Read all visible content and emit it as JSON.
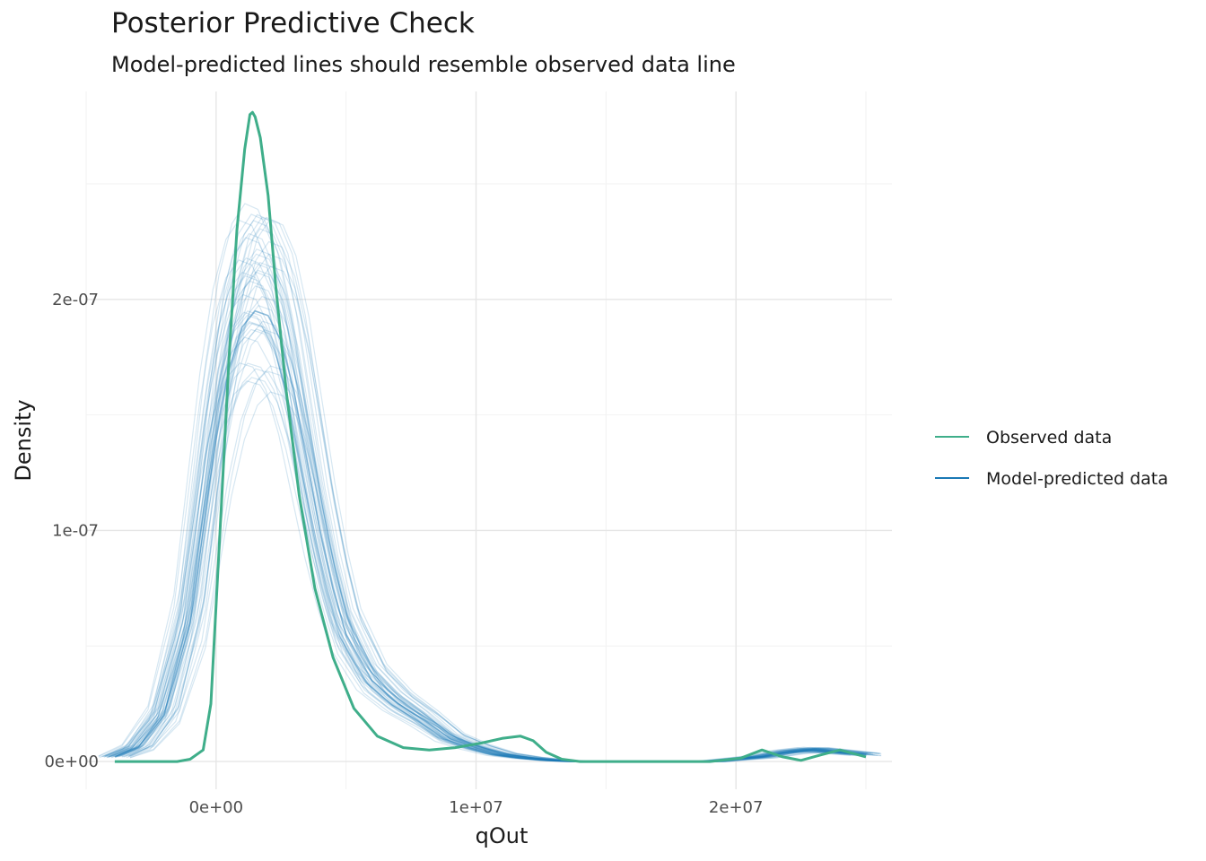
{
  "chart_data": {
    "type": "line",
    "title": "Posterior Predictive Check",
    "subtitle": "Model-predicted lines should resemble observed data line",
    "xlabel": "qOut",
    "ylabel": "Density",
    "xlim": [
      -5000000,
      26000000
    ],
    "ylim": [
      -1.2e-08,
      2.9e-07
    ],
    "x_ticks": [
      {
        "value": 0,
        "label": "0e+00"
      },
      {
        "value": 10000000,
        "label": "1e+07"
      },
      {
        "value": 20000000,
        "label": "2e+07"
      }
    ],
    "y_ticks": [
      {
        "value": 0,
        "label": "0e+00"
      },
      {
        "value": 1e-07,
        "label": "1e-07"
      },
      {
        "value": 2e-07,
        "label": "2e-07"
      }
    ],
    "x_minor_grid": [
      -5000000,
      5000000,
      15000000,
      25000000
    ],
    "y_minor_grid": [
      5e-08,
      1.5e-07,
      2.5e-07
    ],
    "grid": true,
    "legend_position": "right",
    "series": [
      {
        "name": "Observed data",
        "color": "#3fae8a",
        "x": [
          -3900000,
          -1500000,
          -1000000,
          -500000,
          -200000,
          200000,
          500000,
          800000,
          1100000,
          1300000,
          1400000,
          1500000,
          1700000,
          2000000,
          2300000,
          2700000,
          3200000,
          3800000,
          4500000,
          5300000,
          6200000,
          7200000,
          8200000,
          9200000,
          10200000,
          11000000,
          11700000,
          12200000,
          12700000,
          13300000,
          14000000,
          15000000,
          17000000,
          19000000,
          20200000,
          21000000,
          21800000,
          22500000,
          23300000,
          24000000,
          25000000
        ],
        "y": [
          0,
          0,
          1e-09,
          5e-09,
          2.5e-08,
          1.1e-07,
          1.75e-07,
          2.3e-07,
          2.65e-07,
          2.8e-07,
          2.81e-07,
          2.79e-07,
          2.7e-07,
          2.45e-07,
          2.05e-07,
          1.6e-07,
          1.15e-07,
          7.5e-08,
          4.5e-08,
          2.3e-08,
          1.1e-08,
          6e-09,
          5e-09,
          6e-09,
          8e-09,
          1e-08,
          1.1e-08,
          9e-09,
          4e-09,
          1e-09,
          0,
          0,
          0,
          0,
          1.5e-09,
          5e-09,
          2e-09,
          5e-10,
          3e-09,
          5e-09,
          2e-09
        ]
      },
      {
        "name": "Model-predicted data",
        "color": "#1a78b5",
        "x": [
          -3900000,
          -3000000,
          -2000000,
          -1000000,
          -500000,
          0,
          500000,
          1000000,
          1500000,
          2000000,
          2500000,
          3000000,
          3500000,
          4000000,
          4500000,
          5000000,
          6000000,
          7000000,
          8000000,
          9000000,
          10000000,
          11000000,
          12000000,
          13000000,
          14000000,
          15000000,
          17000000,
          19000000,
          20000000,
          21000000,
          22000000,
          23000000,
          24000000,
          25000000
        ],
        "y": [
          2e-09,
          6e-09,
          2e-08,
          6e-08,
          1e-07,
          1.4e-07,
          1.7e-07,
          1.88e-07,
          1.95e-07,
          1.93e-07,
          1.82e-07,
          1.6e-07,
          1.3e-07,
          1e-07,
          7.5e-08,
          5.5e-08,
          3.5e-08,
          2.5e-08,
          1.8e-08,
          1e-08,
          6e-09,
          3e-09,
          1.5e-09,
          5e-10,
          0,
          0,
          0,
          0,
          1e-09,
          2e-09,
          4e-09,
          5e-09,
          4e-09,
          3e-09
        ]
      }
    ]
  }
}
